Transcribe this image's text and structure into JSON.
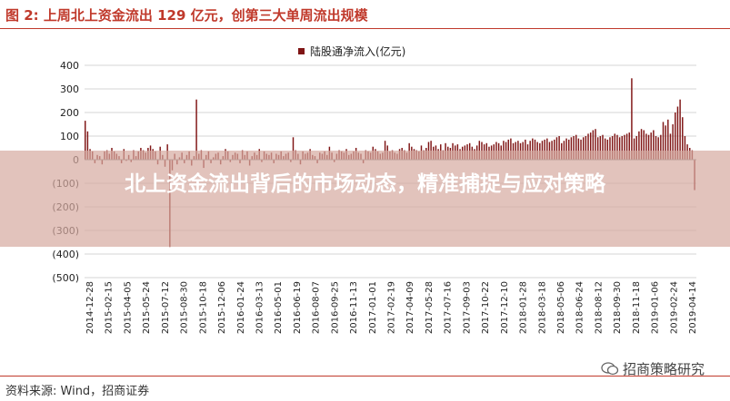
{
  "figure": {
    "title": "图 2:  上周北上资金流出 129 亿元，创第三大单周流出规模",
    "source": "资料来源:  Wind，招商证券",
    "watermark": "招商策略研究",
    "accent_color": "#c0392b"
  },
  "overlay": {
    "headline": "北上资金流出背后的市场动态，精准捕捉与应对策略"
  },
  "chart_data": {
    "type": "bar",
    "legend_position": "top-center",
    "series": [
      {
        "name": "陆股通净流入(亿元)",
        "color": "#7f1515"
      }
    ],
    "ylim": [
      -500,
      400
    ],
    "yticks": [
      400,
      300,
      200,
      100,
      0,
      -100,
      -200,
      -300,
      -400,
      -500
    ],
    "ytick_labels": [
      "400",
      "300",
      "200",
      "100",
      "0",
      "(100)",
      "(200)",
      "(300)",
      "(400)",
      "(500)"
    ],
    "grid": true,
    "x_tick_labels": [
      "2014-12-28",
      "2015-02-15",
      "2015-04-05",
      "2015-05-24",
      "2015-07-12",
      "2015-08-30",
      "2015-10-18",
      "2015-12-06",
      "2016-01-24",
      "2016-03-13",
      "2016-05-01",
      "2016-06-19",
      "2016-08-07",
      "2016-09-25",
      "2016-11-13",
      "2017-01-01",
      "2017-02-19",
      "2017-04-09",
      "2017-05-28",
      "2017-07-16",
      "2017-09-03",
      "2017-10-22",
      "2017-12-10",
      "2018-01-28",
      "2018-03-18",
      "2018-05-06",
      "2018-06-24",
      "2018-08-12",
      "2018-09-30",
      "2018-11-18",
      "2019-01-06",
      "2019-02-24",
      "2019-04-14"
    ],
    "values": [
      165,
      120,
      45,
      35,
      -15,
      20,
      15,
      -20,
      35,
      40,
      25,
      50,
      35,
      25,
      15,
      -15,
      45,
      -5,
      20,
      -10,
      40,
      15,
      35,
      50,
      40,
      30,
      50,
      60,
      45,
      35,
      -20,
      55,
      20,
      -30,
      65,
      -370,
      -45,
      25,
      -20,
      10,
      30,
      -15,
      20,
      35,
      -25,
      15,
      255,
      25,
      40,
      -35,
      20,
      35,
      -15,
      10,
      25,
      30,
      -20,
      15,
      45,
      35,
      -10,
      20,
      30,
      25,
      -15,
      40,
      20,
      35,
      -25,
      15,
      30,
      20,
      45,
      -10,
      35,
      25,
      20,
      30,
      -15,
      25,
      20,
      35,
      15,
      25,
      30,
      -10,
      95,
      40,
      25,
      -20,
      35,
      25,
      30,
      45,
      20,
      15,
      -15,
      30,
      25,
      35,
      20,
      55,
      30,
      -10,
      25,
      40,
      35,
      30,
      45,
      20,
      25,
      35,
      50,
      30,
      25,
      -15,
      40,
      35,
      30,
      55,
      45,
      35,
      25,
      30,
      80,
      60,
      35,
      40,
      30,
      25,
      45,
      50,
      40,
      30,
      70,
      55,
      45,
      40,
      35,
      60,
      40,
      50,
      75,
      80,
      55,
      60,
      45,
      65,
      40,
      70,
      55,
      50,
      70,
      60,
      65,
      45,
      55,
      60,
      65,
      70,
      55,
      45,
      60,
      80,
      75,
      65,
      70,
      55,
      60,
      65,
      75,
      70,
      60,
      80,
      75,
      85,
      90,
      70,
      75,
      80,
      70,
      75,
      85,
      65,
      80,
      90,
      85,
      75,
      70,
      80,
      85,
      90,
      75,
      80,
      85,
      95,
      100,
      70,
      80,
      90,
      85,
      95,
      100,
      105,
      90,
      85,
      95,
      100,
      110,
      115,
      125,
      130,
      95,
      100,
      105,
      90,
      85,
      95,
      100,
      110,
      105,
      95,
      100,
      105,
      110,
      115,
      345,
      90,
      100,
      120,
      130,
      125,
      110,
      105,
      115,
      125,
      100,
      95,
      105,
      160,
      145,
      170,
      110,
      150,
      200,
      225,
      255,
      180,
      100,
      65,
      50,
      40,
      -129
    ]
  }
}
